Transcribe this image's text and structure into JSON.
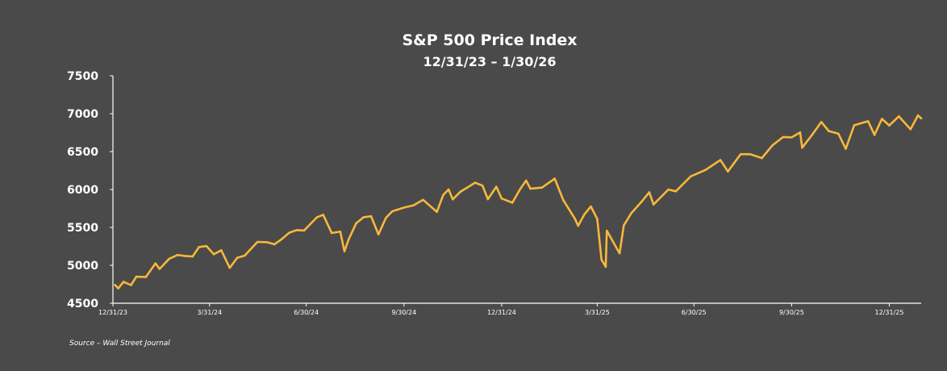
{
  "chart_data": {
    "type": "line",
    "title": "S&P 500 Price Index",
    "subtitle": "12/31/23 – 1/30/26",
    "source": "Source – Wall Street Journal",
    "xlabel": "",
    "ylabel": "",
    "ylim": [
      4500,
      7500
    ],
    "yticks": [
      "7500",
      "7000",
      "6500",
      "6000",
      "5500",
      "5000",
      "4500"
    ],
    "xlim": [
      "2023-12-31",
      "2026-01-30"
    ],
    "xticks": [
      {
        "date": "2023-12-31",
        "label": "12/31/23"
      },
      {
        "date": "2024-03-31",
        "label": "3/31/24"
      },
      {
        "date": "2024-06-30",
        "label": "6/30/24"
      },
      {
        "date": "2024-09-30",
        "label": "9/30/24"
      },
      {
        "date": "2024-12-31",
        "label": "12/31/24"
      },
      {
        "date": "2025-03-31",
        "label": "3/31/25"
      },
      {
        "date": "2025-06-30",
        "label": "6/30/25"
      },
      {
        "date": "2025-09-30",
        "label": "9/30/25"
      },
      {
        "date": "2025-12-31",
        "label": "12/31/25"
      }
    ],
    "grid": false,
    "line_color": "#f8b83a",
    "axis_color": "#ffffff",
    "background": "#4a4a4a",
    "series": [
      {
        "points": [
          [
            "2024-01-02",
            4742
          ],
          [
            "2024-01-05",
            4697
          ],
          [
            "2024-01-10",
            4783
          ],
          [
            "2024-01-17",
            4739
          ],
          [
            "2024-01-22",
            4850
          ],
          [
            "2024-01-31",
            4846
          ],
          [
            "2024-02-09",
            5026
          ],
          [
            "2024-02-13",
            4953
          ],
          [
            "2024-02-22",
            5087
          ],
          [
            "2024-03-01",
            5137
          ],
          [
            "2024-03-08",
            5123
          ],
          [
            "2024-03-15",
            5117
          ],
          [
            "2024-03-21",
            5241
          ],
          [
            "2024-03-28",
            5254
          ],
          [
            "2024-04-04",
            5147
          ],
          [
            "2024-04-11",
            5199
          ],
          [
            "2024-04-19",
            4967
          ],
          [
            "2024-04-26",
            5100
          ],
          [
            "2024-05-03",
            5128
          ],
          [
            "2024-05-15",
            5308
          ],
          [
            "2024-05-24",
            5305
          ],
          [
            "2024-05-31",
            5278
          ],
          [
            "2024-06-07",
            5347
          ],
          [
            "2024-06-14",
            5431
          ],
          [
            "2024-06-21",
            5465
          ],
          [
            "2024-06-28",
            5460
          ],
          [
            "2024-07-10",
            5633
          ],
          [
            "2024-07-16",
            5667
          ],
          [
            "2024-07-24",
            5427
          ],
          [
            "2024-08-01",
            5446
          ],
          [
            "2024-08-05",
            5186
          ],
          [
            "2024-08-09",
            5344
          ],
          [
            "2024-08-16",
            5554
          ],
          [
            "2024-08-23",
            5634
          ],
          [
            "2024-08-30",
            5648
          ],
          [
            "2024-09-06",
            5408
          ],
          [
            "2024-09-13",
            5626
          ],
          [
            "2024-09-19",
            5713
          ],
          [
            "2024-09-30",
            5762
          ],
          [
            "2024-10-09",
            5792
          ],
          [
            "2024-10-18",
            5864
          ],
          [
            "2024-10-31",
            5705
          ],
          [
            "2024-11-06",
            5929
          ],
          [
            "2024-11-11",
            6001
          ],
          [
            "2024-11-15",
            5870
          ],
          [
            "2024-11-22",
            5969
          ],
          [
            "2024-12-06",
            6090
          ],
          [
            "2024-12-13",
            6051
          ],
          [
            "2024-12-18",
            5872
          ],
          [
            "2024-12-26",
            6037
          ],
          [
            "2024-12-31",
            5882
          ],
          [
            "2025-01-10",
            5827
          ],
          [
            "2025-01-17",
            5997
          ],
          [
            "2025-01-23",
            6119
          ],
          [
            "2025-01-27",
            6012
          ],
          [
            "2025-02-07",
            6026
          ],
          [
            "2025-02-19",
            6144
          ],
          [
            "2025-02-27",
            5861
          ],
          [
            "2025-03-10",
            5614
          ],
          [
            "2025-03-13",
            5522
          ],
          [
            "2025-03-19",
            5675
          ],
          [
            "2025-03-25",
            5777
          ],
          [
            "2025-03-31",
            5612
          ],
          [
            "2025-04-04",
            5074
          ],
          [
            "2025-04-08",
            4982
          ],
          [
            "2025-04-09",
            5457
          ],
          [
            "2025-04-21",
            5158
          ],
          [
            "2025-04-25",
            5525
          ],
          [
            "2025-05-02",
            5686
          ],
          [
            "2025-05-12",
            5844
          ],
          [
            "2025-05-19",
            5964
          ],
          [
            "2025-05-23",
            5802
          ],
          [
            "2025-06-06",
            6000
          ],
          [
            "2025-06-13",
            5977
          ],
          [
            "2025-06-27",
            6173
          ],
          [
            "2025-07-11",
            6259
          ],
          [
            "2025-07-25",
            6389
          ],
          [
            "2025-08-01",
            6238
          ],
          [
            "2025-08-13",
            6466
          ],
          [
            "2025-08-22",
            6466
          ],
          [
            "2025-09-02",
            6415
          ],
          [
            "2025-09-12",
            6584
          ],
          [
            "2025-09-22",
            6693
          ],
          [
            "2025-09-30",
            6688
          ],
          [
            "2025-10-08",
            6753
          ],
          [
            "2025-10-10",
            6552
          ],
          [
            "2025-10-20",
            6735
          ],
          [
            "2025-10-28",
            6891
          ],
          [
            "2025-11-04",
            6771
          ],
          [
            "2025-11-13",
            6737
          ],
          [
            "2025-11-20",
            6538
          ],
          [
            "2025-11-28",
            6849
          ],
          [
            "2025-12-11",
            6901
          ],
          [
            "2025-12-17",
            6721
          ],
          [
            "2025-12-24",
            6932
          ],
          [
            "2025-12-31",
            6845
          ],
          [
            "2026-01-09",
            6966
          ],
          [
            "2026-01-20",
            6796
          ],
          [
            "2026-01-27",
            6978
          ],
          [
            "2026-01-30",
            6939
          ]
        ]
      }
    ]
  }
}
